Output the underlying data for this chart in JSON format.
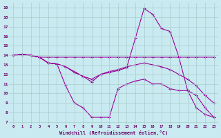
{
  "xlabel": "Windchill (Refroidissement éolien,°C)",
  "background_color": "#c8eaf0",
  "line_color": "#990099",
  "grid_color": "#aacccc",
  "xlim": [
    0,
    23
  ],
  "ylim": [
    7,
    19
  ],
  "xticks": [
    0,
    1,
    2,
    3,
    4,
    5,
    6,
    7,
    8,
    9,
    10,
    11,
    12,
    13,
    14,
    15,
    16,
    17,
    18,
    19,
    20,
    21,
    22,
    23
  ],
  "yticks": [
    7,
    8,
    9,
    10,
    11,
    12,
    13,
    14,
    15,
    16,
    17,
    18,
    19
  ],
  "hours": [
    0,
    1,
    2,
    3,
    4,
    5,
    6,
    7,
    8,
    9,
    10,
    11,
    12,
    13,
    14,
    15,
    16,
    17,
    18,
    19,
    20,
    21,
    22,
    23
  ],
  "series1": [
    14.0,
    14.1,
    14.0,
    13.8,
    13.8,
    13.8,
    13.8,
    13.8,
    13.8,
    13.8,
    13.8,
    13.8,
    13.8,
    13.8,
    13.8,
    13.8,
    13.8,
    13.8,
    13.8,
    13.8,
    13.8,
    13.8,
    13.8,
    13.8
  ],
  "series2": [
    14.0,
    14.1,
    14.0,
    13.8,
    13.2,
    13.1,
    10.8,
    9.0,
    8.5,
    7.5,
    7.5,
    7.5,
    10.5,
    11.0,
    11.3,
    11.5,
    11.0,
    11.0,
    10.5,
    10.3,
    10.3,
    8.5,
    7.8,
    7.5
  ],
  "series3": [
    14.0,
    14.1,
    14.0,
    13.8,
    13.2,
    13.1,
    12.8,
    12.3,
    11.8,
    11.5,
    12.0,
    12.3,
    12.5,
    12.8,
    13.0,
    13.2,
    13.0,
    12.8,
    12.5,
    12.0,
    11.5,
    10.8,
    9.8,
    9.0
  ],
  "series4": [
    14.0,
    14.1,
    14.0,
    13.8,
    13.2,
    13.1,
    12.8,
    12.2,
    11.8,
    11.2,
    12.0,
    12.2,
    12.4,
    12.7,
    15.8,
    18.9,
    18.3,
    16.8,
    16.5,
    13.8,
    10.3,
    9.8,
    8.5,
    7.5
  ]
}
